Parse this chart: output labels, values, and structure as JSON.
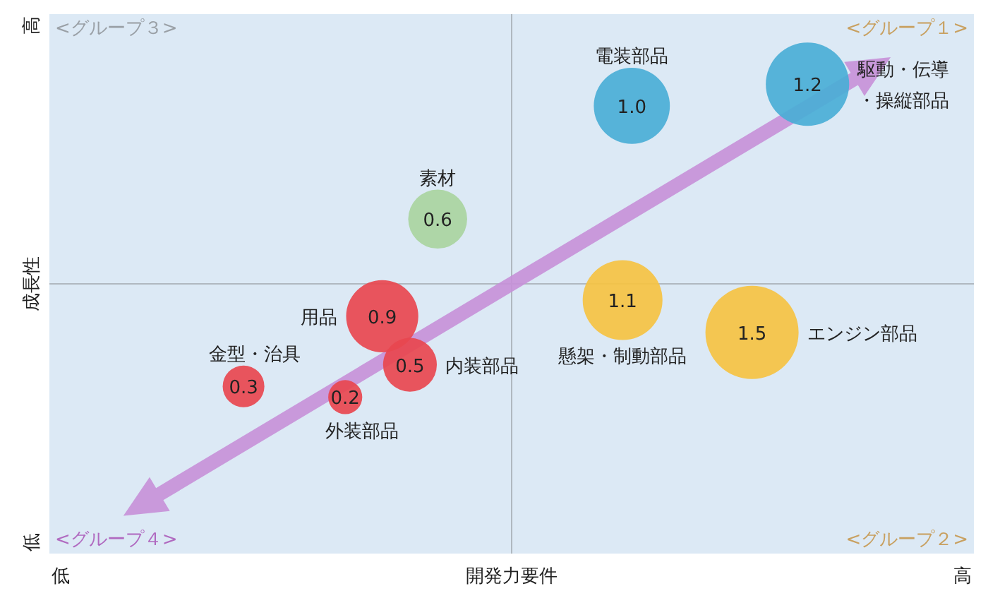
{
  "chart_data": {
    "type": "other",
    "xlabel": "開発力要件",
    "ylabel": "成長性",
    "annotations": [
      "<グループ１>",
      "<グループ２>",
      "<グループ３>",
      "<グループ４>",
      "低",
      "高",
      "低",
      "高"
    ],
    "categories": [
      "電装部品",
      "駆動・伝導・操縦部品",
      "素材",
      "用品",
      "内装部品",
      "金型・治具",
      "外装部品",
      "懸架・制動部品",
      "エンジン部品"
    ],
    "values": [
      1.0,
      1.2,
      0.6,
      0.9,
      0.5,
      0.3,
      0.2,
      1.1,
      1.5
    ],
    "value_labels": [
      "1.0",
      "1.2",
      "0.6",
      "0.9",
      "0.5",
      "0.3",
      "0.2",
      "1.1",
      "1.5"
    ],
    "colors": [
      "#4aaed6",
      "#4aaed6",
      "#a9d4a0",
      "#e8474f",
      "#e8474f",
      "#e8474f",
      "#e8474f",
      "#f5c242",
      "#f5c242"
    ]
  }
}
